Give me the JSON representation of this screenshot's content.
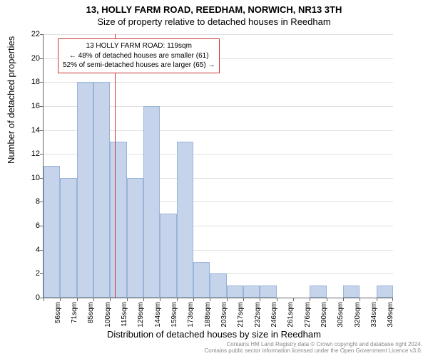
{
  "title_line1": "13, HOLLY FARM ROAD, REEDHAM, NORWICH, NR13 3TH",
  "title_line2": "Size of property relative to detached houses in Reedham",
  "ylabel": "Number of detached properties",
  "xlabel": "Distribution of detached houses by size in Reedham",
  "chart": {
    "type": "histogram",
    "ylim": [
      0,
      22
    ],
    "ytick_step": 2,
    "categories": [
      "56sqm",
      "71sqm",
      "85sqm",
      "100sqm",
      "115sqm",
      "129sqm",
      "144sqm",
      "159sqm",
      "173sqm",
      "188sqm",
      "203sqm",
      "217sqm",
      "232sqm",
      "246sqm",
      "261sqm",
      "276sqm",
      "290sqm",
      "305sqm",
      "320sqm",
      "334sqm",
      "349sqm"
    ],
    "values": [
      11,
      10,
      18,
      18,
      13,
      10,
      16,
      7,
      13,
      3,
      2,
      1,
      1,
      1,
      0,
      0,
      1,
      0,
      1,
      0,
      1
    ],
    "bar_color": "#c5d4ea",
    "bar_border": "#9ab4d8",
    "grid_color": "#e0e0e0",
    "axis_color": "#666666",
    "marker_color": "#cc3333",
    "marker_bin_index": 4
  },
  "annotation": {
    "line1": "13 HOLLY FARM ROAD: 119sqm",
    "line2": "← 48% of detached houses are smaller (61)",
    "line3": "52% of semi-detached houses are larger (65) →"
  },
  "footer": {
    "line1": "Contains HM Land Registry data © Crown copyright and database right 2024.",
    "line2": "Contains public sector information licensed under the Open Government Licence v3.0."
  }
}
